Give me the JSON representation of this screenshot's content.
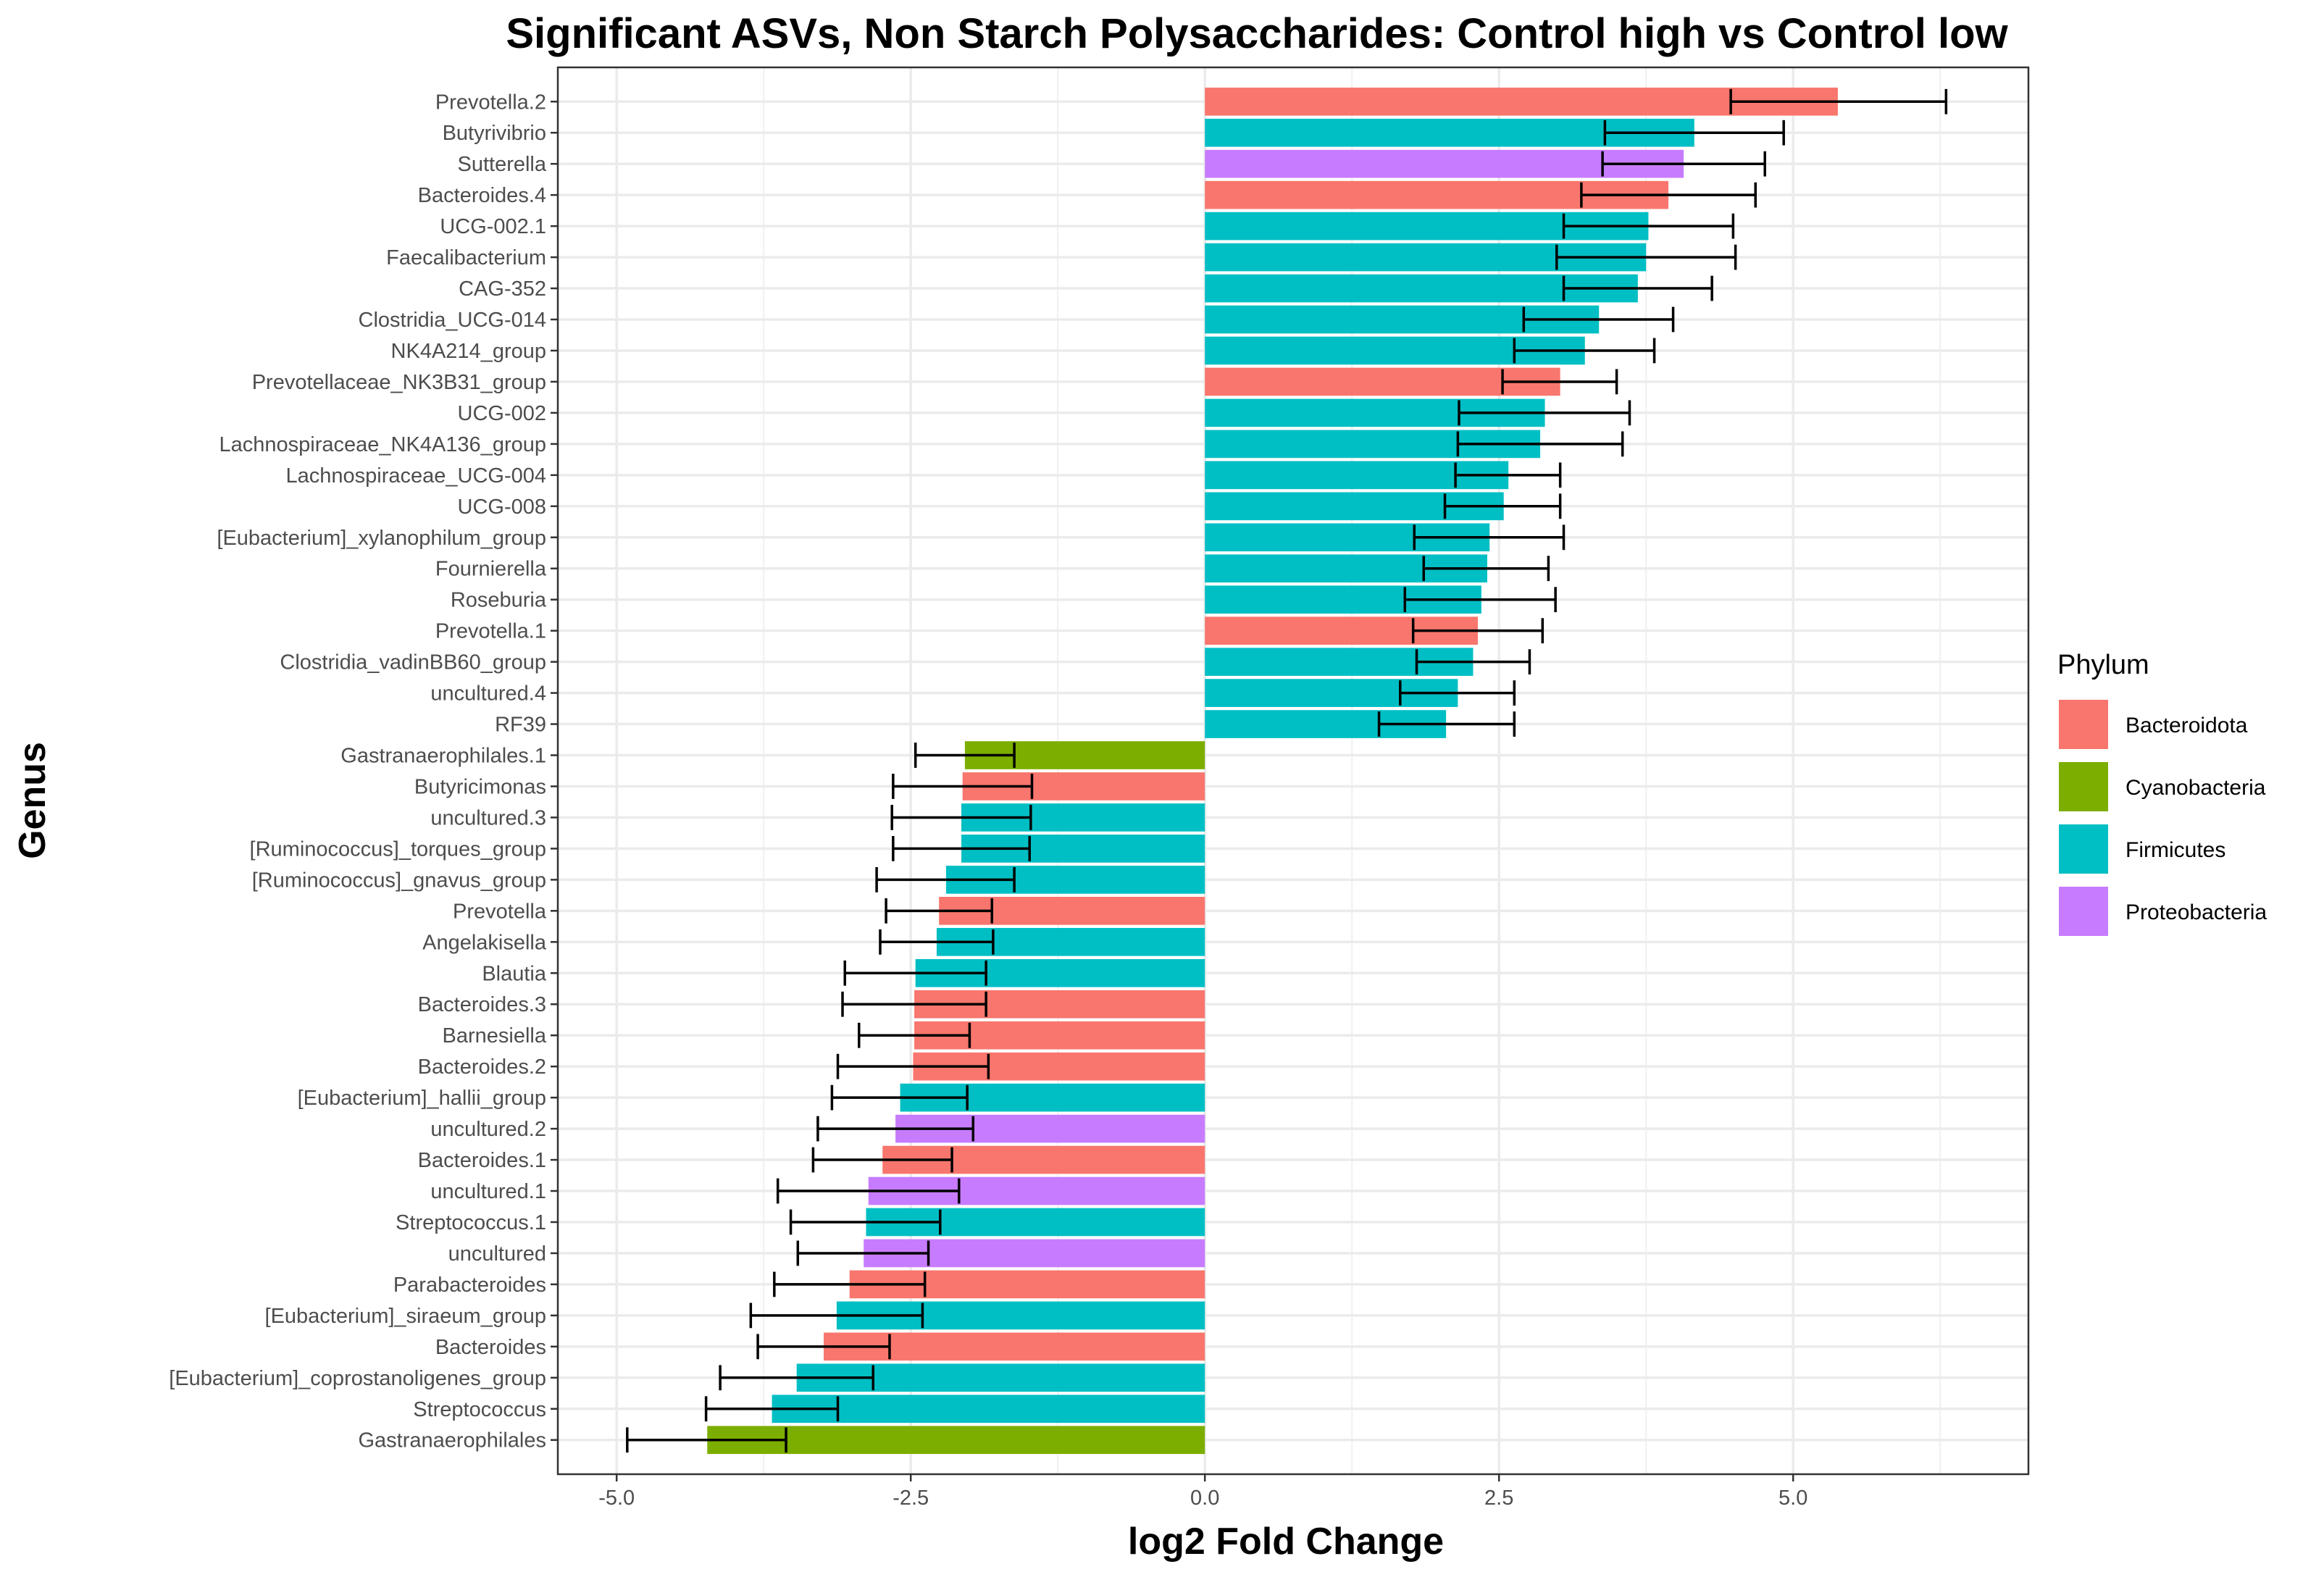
{
  "chart_data": {
    "type": "bar",
    "orientation": "horizontal",
    "title": "Significant ASVs, Non Starch Polysaccharides: Control high vs Control low",
    "xlabel": "log2 Fold Change",
    "ylabel": "Genus",
    "xlim": [
      -5.5,
      7.0
    ],
    "xticks": [
      -5.0,
      -2.5,
      0.0,
      2.5,
      5.0
    ],
    "xtick_labels": [
      "-5.0",
      "-2.5",
      "0.0",
      "2.5",
      "5.0"
    ],
    "grid": true,
    "legend": {
      "title": "Phylum",
      "placement": "right",
      "entries": [
        {
          "name": "Bacteroidota",
          "color": "#F8766D"
        },
        {
          "name": "Cyanobacteria",
          "color": "#7CAE00"
        },
        {
          "name": "Firmicutes",
          "color": "#00BFC4"
        },
        {
          "name": "Proteobacteria",
          "color": "#C77CFF"
        }
      ]
    },
    "bars": [
      {
        "genus": "Prevotella.2",
        "phylum": "Bacteroidota",
        "value": 5.38,
        "err_low": 4.47,
        "err_high": 6.3
      },
      {
        "genus": "Butyrivibrio",
        "phylum": "Firmicutes",
        "value": 4.16,
        "err_low": 3.4,
        "err_high": 4.92
      },
      {
        "genus": "Sutterella",
        "phylum": "Proteobacteria",
        "value": 4.07,
        "err_low": 3.38,
        "err_high": 4.76
      },
      {
        "genus": "Bacteroides.4",
        "phylum": "Bacteroidota",
        "value": 3.94,
        "err_low": 3.2,
        "err_high": 4.68
      },
      {
        "genus": "UCG-002.1",
        "phylum": "Firmicutes",
        "value": 3.77,
        "err_low": 3.05,
        "err_high": 4.49
      },
      {
        "genus": "Faecalibacterium",
        "phylum": "Firmicutes",
        "value": 3.75,
        "err_low": 2.99,
        "err_high": 4.51
      },
      {
        "genus": "CAG-352",
        "phylum": "Firmicutes",
        "value": 3.68,
        "err_low": 3.05,
        "err_high": 4.31
      },
      {
        "genus": "Clostridia_UCG-014",
        "phylum": "Firmicutes",
        "value": 3.35,
        "err_low": 2.71,
        "err_high": 3.98
      },
      {
        "genus": "NK4A214_group",
        "phylum": "Firmicutes",
        "value": 3.23,
        "err_low": 2.63,
        "err_high": 3.82
      },
      {
        "genus": "Prevotellaceae_NK3B31_group",
        "phylum": "Bacteroidota",
        "value": 3.02,
        "err_low": 2.53,
        "err_high": 3.5
      },
      {
        "genus": "UCG-002",
        "phylum": "Firmicutes",
        "value": 2.89,
        "err_low": 2.16,
        "err_high": 3.61
      },
      {
        "genus": "Lachnospiraceae_NK4A136_group",
        "phylum": "Firmicutes",
        "value": 2.85,
        "err_low": 2.15,
        "err_high": 3.55
      },
      {
        "genus": "Lachnospiraceae_UCG-004",
        "phylum": "Firmicutes",
        "value": 2.58,
        "err_low": 2.13,
        "err_high": 3.02
      },
      {
        "genus": "UCG-008",
        "phylum": "Firmicutes",
        "value": 2.54,
        "err_low": 2.04,
        "err_high": 3.02
      },
      {
        "genus": "[Eubacterium]_xylanophilum_group",
        "phylum": "Firmicutes",
        "value": 2.42,
        "err_low": 1.78,
        "err_high": 3.05
      },
      {
        "genus": "Fournierella",
        "phylum": "Firmicutes",
        "value": 2.4,
        "err_low": 1.86,
        "err_high": 2.92
      },
      {
        "genus": "Roseburia",
        "phylum": "Firmicutes",
        "value": 2.35,
        "err_low": 1.7,
        "err_high": 2.98
      },
      {
        "genus": "Prevotella.1",
        "phylum": "Bacteroidota",
        "value": 2.32,
        "err_low": 1.77,
        "err_high": 2.87
      },
      {
        "genus": "Clostridia_vadinBB60_group",
        "phylum": "Firmicutes",
        "value": 2.28,
        "err_low": 1.8,
        "err_high": 2.76
      },
      {
        "genus": "uncultured.4",
        "phylum": "Firmicutes",
        "value": 2.15,
        "err_low": 1.66,
        "err_high": 2.63
      },
      {
        "genus": "RF39",
        "phylum": "Firmicutes",
        "value": 2.05,
        "err_low": 1.48,
        "err_high": 2.63
      },
      {
        "genus": "Gastranaerophilales.1",
        "phylum": "Cyanobacteria",
        "value": -2.04,
        "err_low": -2.46,
        "err_high": -1.62
      },
      {
        "genus": "Butyricimonas",
        "phylum": "Bacteroidota",
        "value": -2.06,
        "err_low": -2.65,
        "err_high": -1.47
      },
      {
        "genus": "uncultured.3",
        "phylum": "Firmicutes",
        "value": -2.07,
        "err_low": -2.66,
        "err_high": -1.48
      },
      {
        "genus": "[Ruminococcus]_torques_group",
        "phylum": "Firmicutes",
        "value": -2.07,
        "err_low": -2.65,
        "err_high": -1.49
      },
      {
        "genus": "[Ruminococcus]_gnavus_group",
        "phylum": "Firmicutes",
        "value": -2.2,
        "err_low": -2.79,
        "err_high": -1.62
      },
      {
        "genus": "Prevotella",
        "phylum": "Bacteroidota",
        "value": -2.26,
        "err_low": -2.71,
        "err_high": -1.81
      },
      {
        "genus": "Angelakisella",
        "phylum": "Firmicutes",
        "value": -2.28,
        "err_low": -2.76,
        "err_high": -1.8
      },
      {
        "genus": "Blautia",
        "phylum": "Firmicutes",
        "value": -2.46,
        "err_low": -3.06,
        "err_high": -1.86
      },
      {
        "genus": "Bacteroides.3",
        "phylum": "Bacteroidota",
        "value": -2.47,
        "err_low": -3.08,
        "err_high": -1.86
      },
      {
        "genus": "Barnesiella",
        "phylum": "Bacteroidota",
        "value": -2.47,
        "err_low": -2.94,
        "err_high": -2.0
      },
      {
        "genus": "Bacteroides.2",
        "phylum": "Bacteroidota",
        "value": -2.48,
        "err_low": -3.12,
        "err_high": -1.84
      },
      {
        "genus": "[Eubacterium]_hallii_group",
        "phylum": "Firmicutes",
        "value": -2.59,
        "err_low": -3.17,
        "err_high": -2.02
      },
      {
        "genus": "uncultured.2",
        "phylum": "Proteobacteria",
        "value": -2.63,
        "err_low": -3.29,
        "err_high": -1.97
      },
      {
        "genus": "Bacteroides.1",
        "phylum": "Bacteroidota",
        "value": -2.74,
        "err_low": -3.33,
        "err_high": -2.15
      },
      {
        "genus": "uncultured.1",
        "phylum": "Proteobacteria",
        "value": -2.86,
        "err_low": -3.63,
        "err_high": -2.09
      },
      {
        "genus": "Streptococcus.1",
        "phylum": "Firmicutes",
        "value": -2.88,
        "err_low": -3.52,
        "err_high": -2.25
      },
      {
        "genus": "uncultured",
        "phylum": "Proteobacteria",
        "value": -2.9,
        "err_low": -3.46,
        "err_high": -2.35
      },
      {
        "genus": "Parabacteroides",
        "phylum": "Bacteroidota",
        "value": -3.02,
        "err_low": -3.66,
        "err_high": -2.38
      },
      {
        "genus": "[Eubacterium]_siraeum_group",
        "phylum": "Firmicutes",
        "value": -3.13,
        "err_low": -3.86,
        "err_high": -2.4
      },
      {
        "genus": "Bacteroides",
        "phylum": "Bacteroidota",
        "value": -3.24,
        "err_low": -3.8,
        "err_high": -2.68
      },
      {
        "genus": "[Eubacterium]_coprostanoligenes_group",
        "phylum": "Firmicutes",
        "value": -3.47,
        "err_low": -4.12,
        "err_high": -2.82
      },
      {
        "genus": "Streptococcus",
        "phylum": "Firmicutes",
        "value": -3.68,
        "err_low": -4.24,
        "err_high": -3.12
      },
      {
        "genus": "Gastranaerophilales",
        "phylum": "Cyanobacteria",
        "value": -4.23,
        "err_low": -4.91,
        "err_high": -3.56
      }
    ]
  }
}
